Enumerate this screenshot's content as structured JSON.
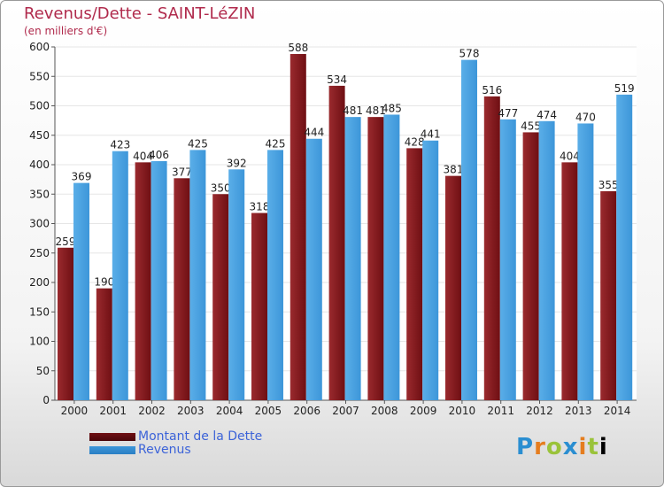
{
  "title": "Revenus/Dette - SAINT-LéZIN",
  "subtitle": "(en milliers d'€)",
  "logo_text": "Proxiti",
  "colors": {
    "dette": "#6f0f13",
    "revenus": "#3d96d9",
    "title": "#b02a4c",
    "legend_text": "#3c63d8"
  },
  "legend": {
    "dette_label": "Montant de la Dette",
    "revenus_label": "Revenus"
  },
  "chart_data": {
    "type": "bar",
    "title": "Revenus/Dette - SAINT-LéZIN",
    "subtitle": "(en milliers d'€)",
    "categories": [
      "2000",
      "2001",
      "2002",
      "2003",
      "2004",
      "2005",
      "2006",
      "2007",
      "2008",
      "2009",
      "2010",
      "2011",
      "2012",
      "2013",
      "2014"
    ],
    "series": [
      {
        "name": "Montant de la Dette",
        "values": [
          259,
          190,
          404,
          377,
          350,
          318,
          588,
          534,
          481,
          428,
          381,
          516,
          455,
          404,
          355
        ]
      },
      {
        "name": "Revenus",
        "values": [
          369,
          423,
          406,
          425,
          392,
          425,
          444,
          481,
          485,
          441,
          578,
          477,
          474,
          470,
          519
        ]
      }
    ],
    "ylim": [
      0,
      600
    ],
    "yticks": [
      0,
      50,
      100,
      150,
      200,
      250,
      300,
      350,
      400,
      450,
      500,
      550,
      600
    ],
    "grid": true,
    "legend_position": "bottom-left"
  }
}
